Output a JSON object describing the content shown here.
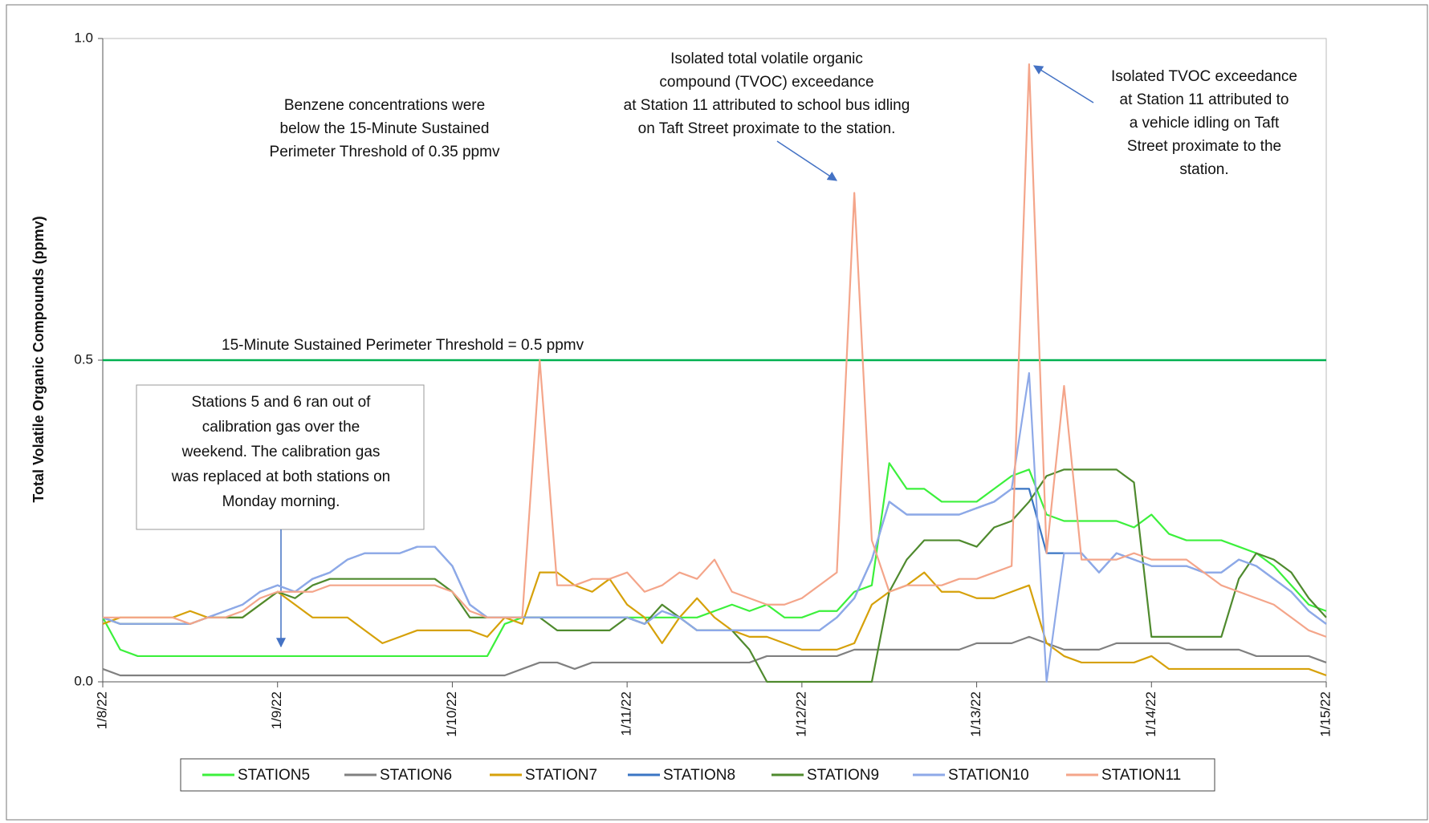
{
  "chart_data": {
    "type": "line",
    "y_label": "Total Volatile Organic Compounds (ppmv)",
    "xlim": [
      0,
      7
    ],
    "xticks": [
      {
        "value": 0,
        "label": "1/8/22"
      },
      {
        "value": 1,
        "label": "1/9/22"
      },
      {
        "value": 2,
        "label": "1/10/22"
      },
      {
        "value": 3,
        "label": "1/11/22"
      },
      {
        "value": 4,
        "label": "1/12/22"
      },
      {
        "value": 5,
        "label": "1/13/22"
      },
      {
        "value": 6,
        "label": "1/14/22"
      },
      {
        "value": 7,
        "label": "1/15/22"
      }
    ],
    "ylim": [
      0,
      1
    ],
    "yticks": [
      {
        "value": 0,
        "label": "0.0"
      },
      0.5,
      {
        "value": 1,
        "label": "1.0"
      }
    ],
    "grid": false,
    "legend": "bottom",
    "x": [
      0,
      0.1,
      0.2,
      0.3,
      0.4,
      0.5,
      0.6,
      0.7,
      0.8,
      0.9,
      1,
      1.1,
      1.2,
      1.3,
      1.4,
      1.5,
      1.6,
      1.7,
      1.8,
      1.9,
      2,
      2.1,
      2.2,
      2.3,
      2.4,
      2.5,
      2.6,
      2.7,
      2.8,
      2.9,
      3,
      3.1,
      3.2,
      3.3,
      3.4,
      3.5,
      3.6,
      3.7,
      3.8,
      3.9,
      4,
      4.1,
      4.2,
      4.3,
      4.4,
      4.5,
      4.6,
      4.7,
      4.8,
      4.9,
      5,
      5.1,
      5.2,
      5.3,
      5.4,
      5.5,
      5.6,
      5.7,
      5.8,
      5.9,
      6,
      6.1,
      6.2,
      6.3,
      6.4,
      6.5,
      6.6,
      6.7,
      6.8,
      6.9,
      7
    ],
    "series": [
      {
        "name": "STATION5",
        "color": "#3cf03c",
        "values": [
          0.1,
          0.05,
          0.04,
          0.04,
          0.04,
          0.04,
          0.04,
          0.04,
          0.04,
          0.04,
          0.04,
          0.04,
          0.04,
          0.04,
          0.04,
          0.04,
          0.04,
          0.04,
          0.04,
          0.04,
          0.04,
          0.04,
          0.04,
          0.09,
          0.1,
          0.1,
          0.1,
          0.1,
          0.1,
          0.1,
          0.1,
          0.1,
          0.1,
          0.1,
          0.1,
          0.11,
          0.12,
          0.11,
          0.12,
          0.1,
          0.1,
          0.11,
          0.11,
          0.14,
          0.15,
          0.34,
          0.3,
          0.3,
          0.28,
          0.28,
          0.28,
          0.3,
          0.32,
          0.33,
          0.26,
          0.25,
          0.25,
          0.25,
          0.25,
          0.24,
          0.26,
          0.23,
          0.22,
          0.22,
          0.22,
          0.21,
          0.2,
          0.18,
          0.15,
          0.12,
          0.11
        ]
      },
      {
        "name": "STATION6",
        "color": "#808080",
        "values": [
          0.02,
          0.01,
          0.01,
          0.01,
          0.01,
          0.01,
          0.01,
          0.01,
          0.01,
          0.01,
          0.01,
          0.01,
          0.01,
          0.01,
          0.01,
          0.01,
          0.01,
          0.01,
          0.01,
          0.01,
          0.01,
          0.01,
          0.01,
          0.01,
          0.02,
          0.03,
          0.03,
          0.02,
          0.03,
          0.03,
          0.03,
          0.03,
          0.03,
          0.03,
          0.03,
          0.03,
          0.03,
          0.03,
          0.04,
          0.04,
          0.04,
          0.04,
          0.04,
          0.05,
          0.05,
          0.05,
          0.05,
          0.05,
          0.05,
          0.05,
          0.06,
          0.06,
          0.06,
          0.07,
          0.06,
          0.05,
          0.05,
          0.05,
          0.06,
          0.06,
          0.06,
          0.06,
          0.05,
          0.05,
          0.05,
          0.05,
          0.04,
          0.04,
          0.04,
          0.04,
          0.03
        ]
      },
      {
        "name": "STATION7",
        "color": "#d6a10a",
        "values": [
          0.09,
          0.1,
          0.1,
          0.1,
          0.1,
          0.11,
          0.1,
          0.1,
          0.1,
          0.12,
          0.14,
          0.12,
          0.1,
          0.1,
          0.1,
          0.08,
          0.06,
          0.07,
          0.08,
          0.08,
          0.08,
          0.08,
          0.07,
          0.1,
          0.09,
          0.17,
          0.17,
          0.15,
          0.14,
          0.16,
          0.12,
          0.1,
          0.06,
          0.1,
          0.13,
          0.1,
          0.08,
          0.07,
          0.07,
          0.06,
          0.05,
          0.05,
          0.05,
          0.06,
          0.12,
          0.14,
          0.15,
          0.17,
          0.14,
          0.14,
          0.13,
          0.13,
          0.14,
          0.15,
          0.06,
          0.04,
          0.03,
          0.03,
          0.03,
          0.03,
          0.04,
          0.02,
          0.02,
          0.02,
          0.02,
          0.02,
          0.02,
          0.02,
          0.02,
          0.02,
          0.01
        ]
      },
      {
        "name": "STATION8",
        "color": "#3a75c4",
        "values": [
          0.1,
          0.09,
          0.09,
          0.09,
          0.09,
          0.09,
          0.1,
          0.11,
          0.12,
          0.14,
          0.15,
          0.14,
          0.16,
          0.17,
          0.19,
          0.2,
          0.2,
          0.2,
          0.21,
          0.21,
          0.18,
          0.12,
          0.1,
          0.1,
          0.1,
          0.1,
          0.1,
          0.1,
          0.1,
          0.1,
          0.1,
          0.09,
          0.11,
          0.1,
          0.08,
          0.08,
          0.08,
          0.08,
          0.08,
          0.08,
          0.08,
          0.08,
          0.1,
          0.13,
          0.19,
          0.28,
          0.26,
          0.26,
          0.26,
          0.26,
          0.27,
          0.28,
          0.3,
          0.3,
          0.2,
          0.2,
          0.2,
          0.17,
          0.2,
          0.19,
          0.18,
          0.18,
          0.18,
          0.17,
          0.17,
          0.19,
          0.18,
          0.16,
          0.14,
          0.11,
          0.09
        ]
      },
      {
        "name": "STATION9",
        "color": "#4f8a2e",
        "values": [
          0.1,
          0.09,
          0.09,
          0.09,
          0.09,
          0.09,
          0.1,
          0.1,
          0.1,
          0.12,
          0.14,
          0.13,
          0.15,
          0.16,
          0.16,
          0.16,
          0.16,
          0.16,
          0.16,
          0.16,
          0.14,
          0.1,
          0.1,
          0.1,
          0.1,
          0.1,
          0.08,
          0.08,
          0.08,
          0.08,
          0.1,
          0.09,
          0.12,
          0.1,
          0.08,
          0.08,
          0.08,
          0.05,
          0,
          0,
          0,
          0,
          0,
          0,
          0,
          0.14,
          0.19,
          0.22,
          0.22,
          0.22,
          0.21,
          0.24,
          0.25,
          0.28,
          0.32,
          0.33,
          0.33,
          0.33,
          0.33,
          0.31,
          0.07,
          0.07,
          0.07,
          0.07,
          0.07,
          0.16,
          0.2,
          0.19,
          0.17,
          0.13,
          0.1
        ]
      },
      {
        "name": "STATION10",
        "color": "#8ea9e8",
        "values": [
          0.1,
          0.09,
          0.09,
          0.09,
          0.09,
          0.09,
          0.1,
          0.11,
          0.12,
          0.14,
          0.15,
          0.14,
          0.16,
          0.17,
          0.19,
          0.2,
          0.2,
          0.2,
          0.21,
          0.21,
          0.18,
          0.12,
          0.1,
          0.1,
          0.1,
          0.1,
          0.1,
          0.1,
          0.1,
          0.1,
          0.1,
          0.09,
          0.11,
          0.1,
          0.08,
          0.08,
          0.08,
          0.08,
          0.08,
          0.08,
          0.08,
          0.08,
          0.1,
          0.13,
          0.19,
          0.28,
          0.26,
          0.26,
          0.26,
          0.26,
          0.27,
          0.28,
          0.3,
          0.48,
          0,
          0.2,
          0.2,
          0.17,
          0.2,
          0.19,
          0.18,
          0.18,
          0.18,
          0.17,
          0.17,
          0.19,
          0.18,
          0.16,
          0.14,
          0.11,
          0.09
        ]
      },
      {
        "name": "STATION11",
        "color": "#f4a58a",
        "values": [
          0.1,
          0.1,
          0.1,
          0.1,
          0.1,
          0.09,
          0.1,
          0.1,
          0.11,
          0.13,
          0.14,
          0.14,
          0.14,
          0.15,
          0.15,
          0.15,
          0.15,
          0.15,
          0.15,
          0.15,
          0.14,
          0.11,
          0.1,
          0.1,
          0.1,
          0.5,
          0.15,
          0.15,
          0.16,
          0.16,
          0.17,
          0.14,
          0.15,
          0.17,
          0.16,
          0.19,
          0.14,
          0.13,
          0.12,
          0.12,
          0.13,
          0.15,
          0.17,
          0.76,
          0.22,
          0.14,
          0.15,
          0.15,
          0.15,
          0.16,
          0.16,
          0.17,
          0.18,
          0.96,
          0.2,
          0.46,
          0.19,
          0.19,
          0.19,
          0.2,
          0.19,
          0.19,
          0.19,
          0.17,
          0.15,
          0.14,
          0.13,
          0.12,
          0.1,
          0.08,
          0.07
        ]
      }
    ],
    "threshold": {
      "value": 0.5,
      "label": "15-Minute Sustained Perimeter Threshold = 0.5 ppmv",
      "color": "#00b050"
    },
    "annotations": [
      {
        "lines": [
          "Benzene concentrations were",
          "below the 15-Minute Sustained",
          "Perimeter Threshold  of 0.35 ppmv"
        ]
      },
      {
        "lines": [
          "Isolated total volatile organic",
          "compound (TVOC) exceedance",
          "at Station 11 attributed to school bus idling",
          "on Taft Street proximate to the station."
        ]
      },
      {
        "lines": [
          "Isolated TVOC exceedance",
          "at Station 11 attributed to",
          "a vehicle idling on Taft",
          "Street proximate to the",
          "station."
        ]
      },
      {
        "lines": [
          "Stations 5 and 6 ran out of",
          "calibration gas over the",
          "weekend. The calibration gas",
          "was replaced at both stations on",
          "Monday morning."
        ]
      }
    ]
  }
}
